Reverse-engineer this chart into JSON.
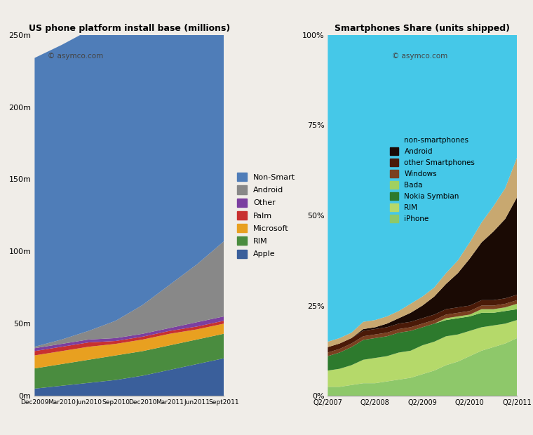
{
  "left_title": "US phone platform install base (millions)",
  "right_title": "Smartphones Share (units shipped)",
  "watermark": "© asymco.com",
  "left_xticks": [
    "Dec2009",
    "Mar2010",
    "Jun2010",
    "Sep2010",
    "Dec2010",
    "Mar2011",
    "Jun2011",
    "Sept2011"
  ],
  "left_yticks": [
    0,
    50,
    100,
    150,
    200,
    250
  ],
  "left_ytick_labels": [
    "0m",
    "50m",
    "100m",
    "150m",
    "200m",
    "250m"
  ],
  "left_x": [
    0,
    1,
    2,
    3,
    4,
    5,
    6,
    7
  ],
  "left_data": {
    "Apple": [
      5,
      7,
      9,
      11,
      14,
      18,
      22,
      26
    ],
    "RIM": [
      14,
      15,
      16,
      17,
      17,
      17,
      17,
      17
    ],
    "Microsoft": [
      9,
      9,
      9,
      8,
      8,
      8,
      7,
      7
    ],
    "Palm": [
      3,
      3,
      3,
      2,
      2,
      2,
      2,
      2
    ],
    "Other": [
      2,
      2,
      2,
      2,
      2,
      2,
      3,
      3
    ],
    "Android": [
      1,
      3,
      6,
      12,
      20,
      30,
      40,
      52
    ],
    "Non-Smart": [
      200,
      204,
      208,
      212,
      213,
      213,
      210,
      215
    ]
  },
  "left_colors": {
    "Apple": "#3a5f9b",
    "RIM": "#4a8c3f",
    "Microsoft": "#e8a020",
    "Palm": "#c83030",
    "Other": "#7b3fa0",
    "Android": "#888888",
    "Non-Smart": "#4f7db8"
  },
  "left_order": [
    "Apple",
    "RIM",
    "Microsoft",
    "Palm",
    "Other",
    "Android",
    "Non-Smart"
  ],
  "left_legend_order": [
    "Non-Smart",
    "Android",
    "Other",
    "Palm",
    "Microsoft",
    "RIM",
    "Apple"
  ],
  "right_xticks": [
    "Q2/2007",
    "Q2/2008",
    "Q2/2009",
    "Q2/2010",
    "Q2/2011"
  ],
  "right_yticks": [
    0,
    25,
    50,
    75,
    100
  ],
  "right_ytick_labels": [
    "0%",
    "25%",
    "50%",
    "75%",
    "100%"
  ],
  "right_x": [
    0,
    1,
    2,
    3,
    4,
    5,
    6,
    7,
    8,
    9,
    10,
    11,
    12,
    13,
    14,
    15,
    16
  ],
  "right_data": {
    "iPhone": [
      2.5,
      2.5,
      3.0,
      3.5,
      3.5,
      4.0,
      4.5,
      5.0,
      6.0,
      7.0,
      8.5,
      9.5,
      11.0,
      12.5,
      13.5,
      14.5,
      16.0
    ],
    "RIM": [
      4.5,
      5.0,
      5.5,
      6.5,
      7.0,
      7.0,
      7.5,
      7.5,
      8.0,
      8.0,
      8.0,
      7.5,
      7.0,
      6.5,
      6.0,
      5.5,
      5.0
    ],
    "Nokia Symbian": [
      4.0,
      4.5,
      5.0,
      5.5,
      5.5,
      5.5,
      5.5,
      5.5,
      5.0,
      5.0,
      4.5,
      4.5,
      4.0,
      4.0,
      3.5,
      3.5,
      3.0
    ],
    "Bada": [
      0.0,
      0.0,
      0.0,
      0.0,
      0.0,
      0.0,
      0.0,
      0.0,
      0.0,
      0.0,
      0.5,
      0.5,
      0.5,
      1.0,
      1.0,
      1.0,
      1.5
    ],
    "Windows": [
      1.0,
      1.0,
      1.0,
      1.0,
      1.0,
      1.0,
      1.0,
      1.0,
      1.0,
      1.0,
      1.0,
      1.0,
      1.0,
      1.0,
      1.0,
      1.0,
      1.0
    ],
    "other Smartphones": [
      1.5,
      1.5,
      1.5,
      1.5,
      1.5,
      1.5,
      1.5,
      1.5,
      1.5,
      1.5,
      1.5,
      1.5,
      1.5,
      1.5,
      1.5,
      1.5,
      1.5
    ],
    "Android": [
      0.0,
      0.0,
      0.0,
      0.5,
      0.5,
      1.0,
      1.5,
      2.5,
      3.5,
      5.0,
      7.0,
      9.5,
      13.0,
      16.0,
      19.0,
      22.0,
      27.0
    ],
    "non-smartphones": [
      1.5,
      1.5,
      1.5,
      2.0,
      2.0,
      2.0,
      2.0,
      2.5,
      2.5,
      2.5,
      3.0,
      3.5,
      4.5,
      5.5,
      7.0,
      8.5,
      11.0
    ]
  },
  "right_colors": {
    "iPhone": "#8ec86a",
    "RIM": "#b5d96a",
    "Nokia Symbian": "#2d7a2d",
    "Bada": "#a0d060",
    "Windows": "#7a4020",
    "other Smartphones": "#4a1a08",
    "Android": "#1a0a04",
    "non-smartphones": "#c8a870"
  },
  "right_top_color": "#45c8e8",
  "right_order": [
    "iPhone",
    "RIM",
    "Nokia Symbian",
    "Bada",
    "Windows",
    "other Smartphones",
    "Android",
    "non-smartphones"
  ],
  "right_legend_order": [
    "non-smartphones",
    "Android",
    "other Smartphones",
    "Windows",
    "Bada",
    "Nokia Symbian",
    "RIM",
    "iPhone"
  ],
  "background_color": "#f0ede8"
}
